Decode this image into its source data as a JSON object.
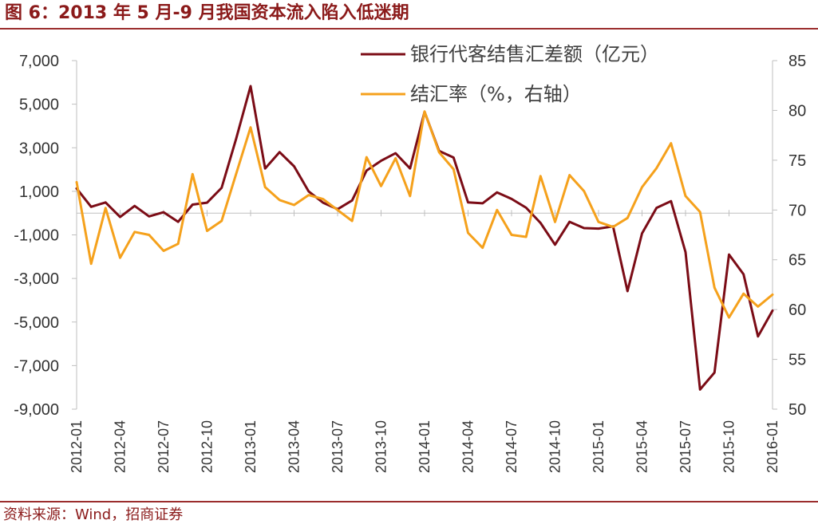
{
  "header": {
    "title": "图 6：2013 年 5 月-9 月我国资本流入陷入低迷期"
  },
  "footer": {
    "source": "资料来源：Wind，招商证券"
  },
  "colors": {
    "accent": "#8B1A1A",
    "rule": "#9B2D2D",
    "series1": "#7B0C16",
    "series2": "#F5A11C",
    "axis": "#BFBFBF"
  },
  "chart_data": {
    "type": "line",
    "title": "",
    "x": [
      "2012-01",
      "2012-02",
      "2012-03",
      "2012-04",
      "2012-05",
      "2012-06",
      "2012-07",
      "2012-08",
      "2012-09",
      "2012-10",
      "2012-11",
      "2012-12",
      "2013-01",
      "2013-02",
      "2013-03",
      "2013-04",
      "2013-05",
      "2013-06",
      "2013-07",
      "2013-08",
      "2013-09",
      "2013-10",
      "2013-11",
      "2013-12",
      "2014-01",
      "2014-02",
      "2014-03",
      "2014-04",
      "2014-05",
      "2014-06",
      "2014-07",
      "2014-08",
      "2014-09",
      "2014-10",
      "2014-11",
      "2014-12",
      "2015-01",
      "2015-02",
      "2015-03",
      "2015-04",
      "2015-05",
      "2015-06",
      "2015-07",
      "2015-08",
      "2015-09",
      "2015-10",
      "2015-11",
      "2015-12",
      "2016-01"
    ],
    "x_tick_labels": [
      "2012-01",
      "2012-04",
      "2012-07",
      "2012-10",
      "2013-01",
      "2013-04",
      "2013-07",
      "2013-10",
      "2014-01",
      "2014-04",
      "2014-07",
      "2014-10",
      "2015-01",
      "2015-04",
      "2015-07",
      "2015-10",
      "2016-01"
    ],
    "series": [
      {
        "name": "银行代客结售汇差额（亿元）",
        "axis": "left",
        "values": [
          1130,
          290,
          490,
          -180,
          330,
          -150,
          40,
          -400,
          390,
          480,
          1160,
          3400,
          5830,
          2050,
          2800,
          2150,
          1000,
          480,
          180,
          580,
          1950,
          2400,
          2750,
          2050,
          4650,
          2850,
          2550,
          490,
          450,
          950,
          650,
          250,
          -450,
          -1450,
          -400,
          -690,
          -710,
          -610,
          -3580,
          -930,
          240,
          550,
          -1790,
          -8100,
          -7320,
          -1900,
          -2810,
          -5660,
          -4480
        ]
      },
      {
        "name": "结汇率（%，右轴）",
        "axis": "right",
        "values": [
          72.8,
          64.6,
          70.2,
          65.2,
          67.8,
          67.5,
          65.9,
          66.6,
          73.6,
          67.9,
          68.9,
          73.6,
          78.3,
          72.3,
          71.0,
          70.5,
          71.5,
          71.1,
          70.0,
          68.9,
          75.3,
          72.4,
          75.2,
          71.4,
          79.9,
          75.8,
          74.1,
          67.7,
          66.2,
          70.0,
          67.5,
          67.3,
          73.4,
          68.8,
          73.5,
          71.9,
          68.8,
          68.3,
          69.2,
          72.3,
          74.2,
          76.7,
          71.4,
          69.8,
          62.2,
          59.2,
          61.6,
          60.3,
          61.5
        ]
      }
    ],
    "left_axis": {
      "ticks": [
        "7,000",
        "5,000",
        "3,000",
        "1,000",
        "-1,000",
        "-3,000",
        "-5,000",
        "-7,000",
        "-9,000"
      ],
      "min": -9000,
      "max": 7000
    },
    "right_axis": {
      "ticks": [
        "85",
        "80",
        "75",
        "70",
        "65",
        "60",
        "55",
        "50"
      ],
      "min": 50,
      "max": 85
    },
    "legend": [
      "银行代客结售汇差额（亿元）",
      "结汇率（%，右轴）"
    ],
    "legend_position": "top-center",
    "grid": false
  }
}
